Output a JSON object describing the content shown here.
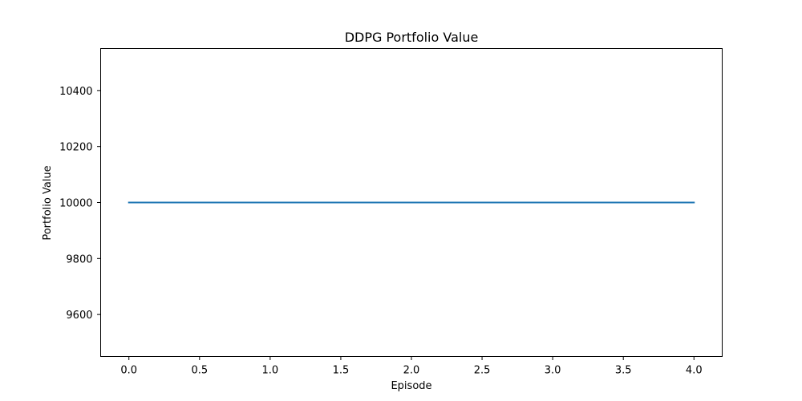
{
  "chart_data": {
    "type": "line",
    "title": "DDPG Portfolio Value",
    "xlabel": "Episode",
    "ylabel": "Portfolio Value",
    "xlim": [
      -0.2,
      4.2
    ],
    "ylim": [
      9450,
      10550
    ],
    "xticks": [
      0.0,
      0.5,
      1.0,
      1.5,
      2.0,
      2.5,
      3.0,
      3.5,
      4.0
    ],
    "xtick_labels": [
      "0.0",
      "0.5",
      "1.0",
      "1.5",
      "2.0",
      "2.5",
      "3.0",
      "3.5",
      "4.0"
    ],
    "yticks": [
      9600,
      9800,
      10000,
      10200,
      10400
    ],
    "ytick_labels": [
      "9600",
      "9800",
      "10000",
      "10200",
      "10400"
    ],
    "grid": false,
    "series": [
      {
        "x": [
          0,
          1,
          2,
          3,
          4
        ],
        "y": [
          10000,
          10000,
          10000,
          10000,
          10000
        ],
        "color": "#1f77b4"
      }
    ]
  }
}
